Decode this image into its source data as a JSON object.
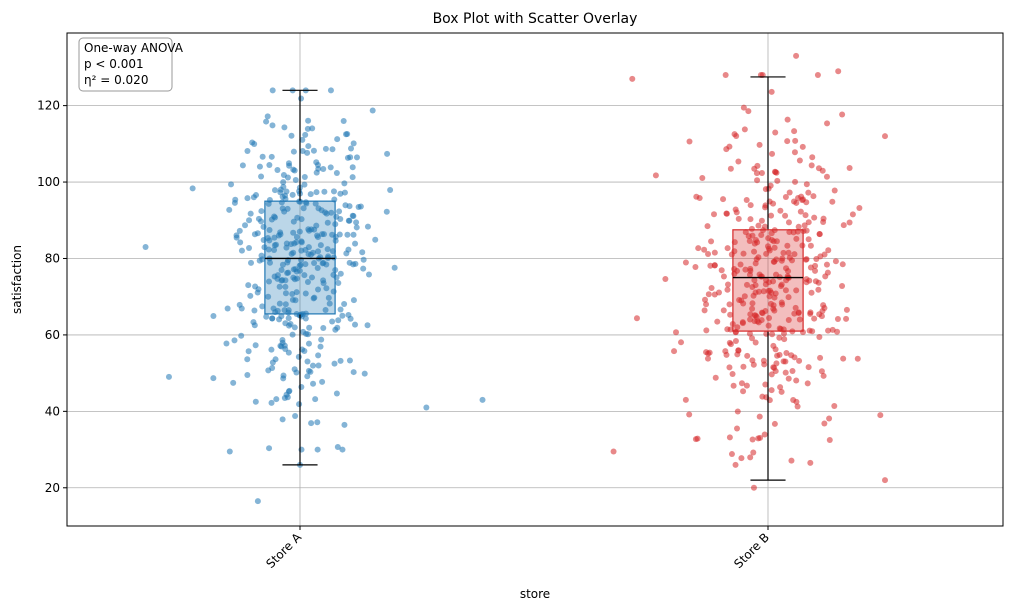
{
  "chart_data": {
    "type": "box",
    "title": "Box Plot with Scatter Overlay",
    "xlabel": "store",
    "ylabel": "satisfaction",
    "categories": [
      "Store A",
      "Store B"
    ],
    "ylim": [
      10,
      139
    ],
    "yticks": [
      20,
      40,
      60,
      80,
      100,
      120
    ],
    "grid": true,
    "colors": {
      "Store A": "#1f77b4",
      "Store B": "#d62728"
    },
    "boxes": [
      {
        "name": "Store A",
        "whisker_low": 26,
        "q1": 65.5,
        "median": 80,
        "q3": 95,
        "whisker_high": 124
      },
      {
        "name": "Store B",
        "whisker_low": 22,
        "q1": 61,
        "median": 75,
        "q3": 87.5,
        "whisker_high": 127.5
      }
    ],
    "annotation": {
      "lines": [
        "One-way ANOVA",
        "p < 0.001",
        "η² = 0.020"
      ],
      "position": "top-left"
    },
    "scatter": {
      "n_per_group": 400,
      "jitter_spread": 0.19,
      "alpha": 0.55,
      "outliers": {
        "Store A": [
          [
            -0.33,
            83
          ],
          [
            0.39,
            43
          ],
          [
            -0.09,
            16.5
          ],
          [
            0.27,
            41
          ],
          [
            0.0,
            26
          ],
          [
            -0.15,
            29.5
          ]
        ],
        "Store B": [
          [
            -0.29,
            127
          ],
          [
            -0.33,
            29.5
          ],
          [
            0.25,
            22
          ],
          [
            0.25,
            112
          ],
          [
            0.24,
            39
          ],
          [
            -0.03,
            20
          ],
          [
            0.15,
            129
          ],
          [
            0.06,
            133
          ]
        ]
      },
      "groups": [
        {
          "name": "Store A",
          "mean": 80,
          "sd": 20,
          "min": 30,
          "max": 124
        },
        {
          "name": "Store B",
          "mean": 74.5,
          "sd": 20,
          "min": 26,
          "max": 128
        }
      ]
    }
  }
}
